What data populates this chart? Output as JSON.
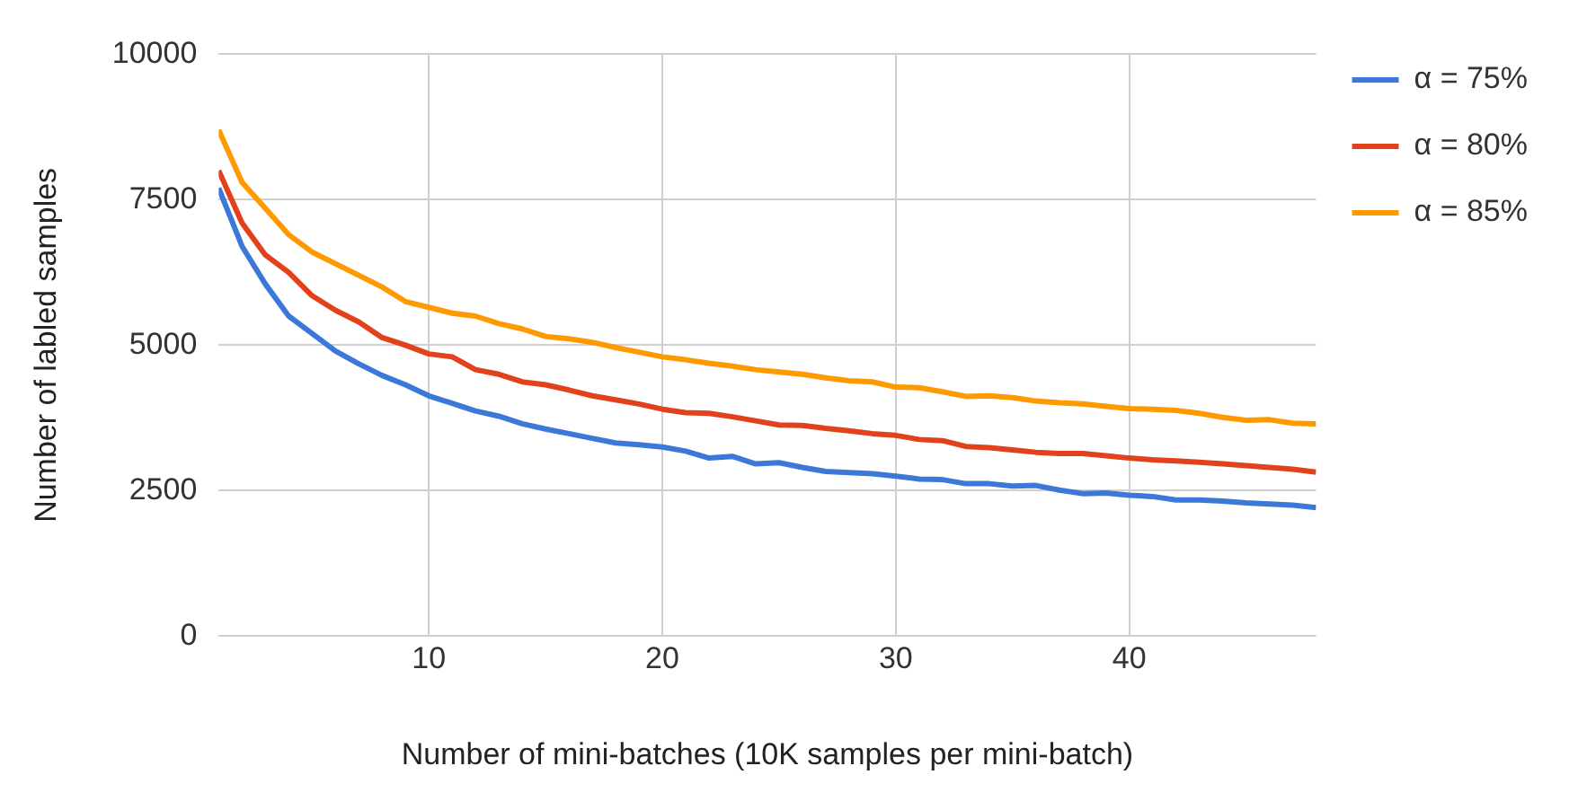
{
  "chart_data": {
    "type": "line",
    "xlabel": "Number of mini-batches (10K samples per mini-batch)",
    "ylabel": "Number of labled samples",
    "x": [
      1,
      2,
      3,
      4,
      5,
      6,
      7,
      8,
      9,
      10,
      11,
      12,
      13,
      14,
      15,
      16,
      17,
      18,
      19,
      20,
      21,
      22,
      23,
      24,
      25,
      26,
      27,
      28,
      29,
      30,
      31,
      32,
      33,
      34,
      35,
      36,
      37,
      38,
      39,
      40,
      41,
      42,
      43,
      44,
      45,
      46,
      47,
      48
    ],
    "series": [
      {
        "name": "α = 75%",
        "color": "#3c78d8",
        "values": [
          7700,
          6700,
          6050,
          5500,
          5200,
          4900,
          4680,
          4480,
          4320,
          4130,
          4000,
          3870,
          3780,
          3650,
          3560,
          3480,
          3400,
          3320,
          3290,
          3250,
          3180,
          3060,
          3090,
          2960,
          2980,
          2900,
          2830,
          2810,
          2790,
          2750,
          2700,
          2690,
          2620,
          2620,
          2580,
          2590,
          2510,
          2450,
          2460,
          2420,
          2400,
          2340,
          2340,
          2320,
          2290,
          2270,
          2250,
          2210
        ]
      },
      {
        "name": "α = 80%",
        "color": "#e2421b",
        "values": [
          8000,
          7100,
          6550,
          6250,
          5850,
          5600,
          5400,
          5130,
          5000,
          4850,
          4800,
          4580,
          4500,
          4370,
          4320,
          4230,
          4130,
          4060,
          3990,
          3900,
          3840,
          3830,
          3770,
          3700,
          3630,
          3620,
          3570,
          3530,
          3480,
          3450,
          3380,
          3360,
          3260,
          3240,
          3200,
          3160,
          3140,
          3140,
          3100,
          3060,
          3030,
          3010,
          2990,
          2960,
          2930,
          2900,
          2870,
          2820
        ]
      },
      {
        "name": "α = 85%",
        "color": "#ff9900",
        "values": [
          8700,
          7800,
          7350,
          6900,
          6600,
          6400,
          6200,
          6000,
          5750,
          5650,
          5550,
          5500,
          5370,
          5280,
          5150,
          5110,
          5050,
          4960,
          4880,
          4800,
          4750,
          4690,
          4640,
          4580,
          4540,
          4500,
          4440,
          4390,
          4370,
          4280,
          4270,
          4200,
          4120,
          4130,
          4100,
          4040,
          4010,
          3990,
          3950,
          3910,
          3900,
          3880,
          3830,
          3760,
          3710,
          3720,
          3660,
          3650
        ]
      }
    ],
    "xlim": [
      1,
      48
    ],
    "xticks": [
      10,
      20,
      30,
      40
    ],
    "ylim": [
      0,
      10000
    ],
    "yticks": [
      0,
      2500,
      5000,
      7500,
      10000
    ],
    "grid": true,
    "legend": "top right",
    "marker": "none",
    "line_style": "solid"
  }
}
